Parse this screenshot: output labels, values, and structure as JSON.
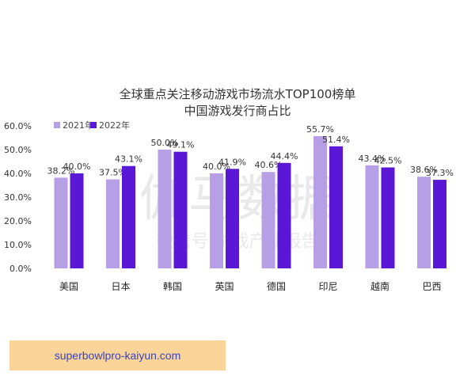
{
  "chart_data": {
    "type": "bar",
    "title": "全球重点关注移动游戏市场流水TOP100榜单",
    "subtitle": "中国游戏发行商占比",
    "categories": [
      "美国",
      "日本",
      "韩国",
      "英国",
      "德国",
      "印尼",
      "越南",
      "巴西"
    ],
    "series": [
      {
        "name": "2021年",
        "color": "#b79fe6",
        "values": [
          38.2,
          37.5,
          50.0,
          40.0,
          40.6,
          55.7,
          43.4,
          38.6
        ],
        "labels": [
          "38.2%",
          "37.5%",
          "50.0%",
          "40.0%",
          "40.6%",
          "55.7%",
          "43.4%",
          "38.6%"
        ]
      },
      {
        "name": "2022年",
        "color": "#5b17d6",
        "values": [
          40.0,
          43.1,
          49.1,
          41.9,
          44.4,
          51.4,
          42.5,
          37.3
        ],
        "labels": [
          "40.0%",
          "43.1%",
          "49.1%",
          "41.9%",
          "44.4%",
          "51.4%",
          "42.5%",
          "37.3%"
        ]
      }
    ],
    "ylim": [
      0,
      60
    ],
    "yticks": [
      0,
      10,
      20,
      30,
      40,
      50,
      60
    ],
    "ytick_labels": [
      "0.0%",
      "10.0%",
      "20.0%",
      "30.0%",
      "40.0%",
      "50.0%",
      "60.0%"
    ],
    "legend_position": "top-left",
    "grid": false
  },
  "watermark": {
    "main": "伽马数据",
    "sub": "微信号  游戏产业报告"
  },
  "banner": {
    "text": "superbowlpro-kaiyun.com",
    "background": "#fbd49a",
    "text_color": "#3b44b8"
  }
}
